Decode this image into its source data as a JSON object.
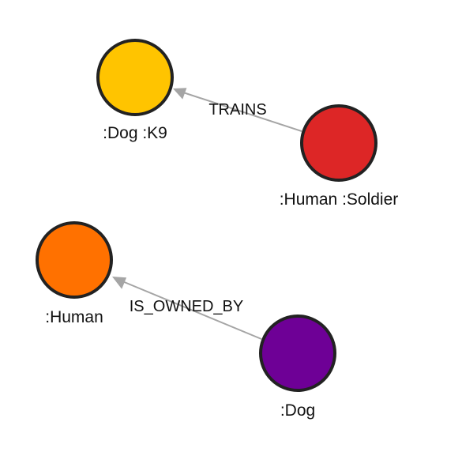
{
  "graph": {
    "nodes": [
      {
        "id": "dog_k9",
        "label": ":Dog :K9",
        "color": "#ffc400"
      },
      {
        "id": "soldier",
        "label": ":Human :Soldier",
        "color": "#dd2626"
      },
      {
        "id": "human",
        "label": ":Human",
        "color": "#ff7100"
      },
      {
        "id": "dog",
        "label": ":Dog",
        "color": "#6e0096"
      }
    ],
    "edges": [
      {
        "from": "soldier",
        "to": "dog_k9",
        "label": "TRAINS"
      },
      {
        "from": "dog",
        "to": "human",
        "label": "IS_OWNED_BY"
      }
    ]
  }
}
